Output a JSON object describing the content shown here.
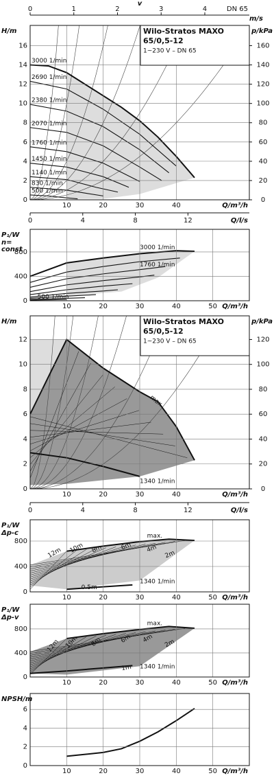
{
  "chart_data": [
    {
      "type": "line",
      "ylabel": "H/m",
      "y2label": "p/kPa",
      "xlabel": "Q/m³/h",
      "xlim": [
        0,
        60
      ],
      "xticks": [
        10,
        20,
        30,
        40
      ],
      "ylim": [
        0,
        18.1
      ],
      "yticks": [
        0,
        2,
        4,
        6,
        8,
        10,
        12,
        14,
        16
      ],
      "y2lim": [
        0,
        181
      ],
      "y2ticks": [
        0,
        20,
        40,
        60,
        80,
        100,
        120,
        140,
        160
      ],
      "top_axis": {
        "label": "v",
        "unit": "m/s",
        "note": "DN 65",
        "lim": [
          0,
          5.02
        ],
        "ticks": [
          0,
          1,
          2,
          3,
          4
        ]
      },
      "x2label": "Q/l/s",
      "x2lim": [
        0,
        16.67
      ],
      "x2ticks": [
        0,
        4,
        8,
        12
      ],
      "box": [
        "Wilo-Stratos MAXO",
        "65/0,5-12",
        "1~230 V – DN 65"
      ],
      "color": "#111",
      "series": [
        {
          "name": "3000 1/min",
          "x": [
            0,
            5,
            10,
            15,
            20,
            25,
            30,
            35,
            40,
            45
          ],
          "values": [
            14,
            13.9,
            13.2,
            12,
            10.8,
            9.6,
            8.2,
            6.5,
            4.5,
            2.3
          ]
        },
        {
          "name": "2690 1/min",
          "x": [
            0,
            10,
            20,
            30,
            40
          ],
          "values": [
            12.3,
            11.5,
            9.4,
            6.8,
            3.5
          ]
        },
        {
          "name": "2380 1/min",
          "x": [
            0,
            10,
            20,
            30,
            38
          ],
          "values": [
            9.9,
            9.2,
            7.6,
            5.2,
            2.8
          ]
        },
        {
          "name": "2070 1/min",
          "x": [
            0,
            10,
            20,
            30,
            36
          ],
          "values": [
            7.5,
            7,
            5.6,
            3.4,
            2
          ]
        },
        {
          "name": "1760 1/min",
          "x": [
            0,
            10,
            20,
            30
          ],
          "values": [
            5.5,
            5,
            3.8,
            1.9
          ]
        },
        {
          "name": "1450 1/min",
          "x": [
            0,
            10,
            20,
            27
          ],
          "values": [
            3.8,
            3.4,
            2.4,
            1.3
          ]
        },
        {
          "name": "1140 1/min",
          "x": [
            0,
            10,
            18,
            24
          ],
          "values": [
            2.4,
            2.1,
            1.3,
            0.8
          ]
        },
        {
          "name": "830 1/min",
          "x": [
            0,
            10,
            15,
            20
          ],
          "values": [
            1.3,
            1,
            0.7,
            0.4
          ]
        },
        {
          "name": "500 1/min",
          "x": [
            0,
            5,
            10,
            13
          ],
          "values": [
            0.5,
            0.4,
            0.2,
            0.1
          ]
        }
      ]
    },
    {
      "type": "line",
      "ylabel": "P₁/W",
      "ylabel_sub": [
        "n=",
        "const"
      ],
      "xlabel": "Q/m³/h",
      "xlim": [
        0,
        60
      ],
      "xticks": [
        10,
        20,
        30,
        40,
        50
      ],
      "ylim": [
        0,
        1170
      ],
      "yticks": [
        0,
        400,
        800
      ],
      "color": "#111",
      "series": [
        {
          "name": "3000 1/min",
          "x": [
            0,
            10,
            20,
            30,
            40,
            45
          ],
          "values": [
            400,
            620,
            700,
            770,
            820,
            810
          ]
        },
        {
          "x": [
            0,
            10,
            20,
            30,
            41
          ],
          "values": [
            300,
            470,
            560,
            640,
            700
          ]
        },
        {
          "x": [
            0,
            10,
            20,
            30,
            37
          ],
          "values": [
            220,
            360,
            440,
            510,
            560
          ]
        },
        {
          "x": [
            0,
            10,
            20,
            30,
            34
          ],
          "values": [
            150,
            260,
            330,
            390,
            420
          ]
        },
        {
          "name": "1760 1/min",
          "x": [
            0,
            10,
            20,
            28
          ],
          "values": [
            100,
            180,
            240,
            280
          ]
        },
        {
          "x": [
            0,
            10,
            20,
            24
          ],
          "values": [
            60,
            120,
            160,
            180
          ]
        },
        {
          "x": [
            0,
            10,
            18
          ],
          "values": [
            40,
            75,
            100
          ]
        },
        {
          "x": [
            0,
            10,
            15
          ],
          "values": [
            20,
            40,
            50
          ]
        },
        {
          "name": "500 1/min",
          "x": [
            0,
            5,
            10
          ],
          "values": [
            10,
            15,
            20
          ]
        }
      ]
    },
    {
      "type": "line",
      "ylabel": "H/m",
      "y2label": "p/kPa",
      "xlabel": "Q/m³/h",
      "xlim": [
        0,
        60
      ],
      "xticks": [
        10,
        20,
        30,
        40
      ],
      "ylim": [
        0,
        13.9
      ],
      "yticks": [
        0,
        2,
        4,
        6,
        8,
        10,
        12
      ],
      "y2lim": [
        0,
        139
      ],
      "y2ticks": [
        0,
        20,
        40,
        60,
        80,
        100,
        120
      ],
      "x2label": "Q/l/s",
      "x2lim": [
        0,
        16.67
      ],
      "x2ticks": [
        0,
        4,
        8,
        12
      ],
      "box": [
        "Wilo-Stratos MAXO",
        "65/0,5-12",
        "1~230 V – DN 65"
      ],
      "color": "#111",
      "series": [
        {
          "name": "max.",
          "x": [
            0,
            10,
            20,
            30,
            35,
            40,
            45
          ],
          "values": [
            6,
            12,
            9.7,
            7.8,
            7,
            5,
            2.3
          ]
        },
        {
          "name": "1340 1/min",
          "x": [
            0,
            10,
            20,
            25,
            30
          ],
          "values": [
            2.9,
            2.5,
            1.8,
            1.4,
            1
          ]
        }
      ]
    },
    {
      "type": "line",
      "ylabel": "P₁/W",
      "ylabel_sub": [
        "Δp-c"
      ],
      "xlabel": "Q/m³/h",
      "xlim": [
        0,
        60
      ],
      "xticks": [
        10,
        20,
        30,
        40,
        50
      ],
      "ylim": [
        0,
        1135
      ],
      "yticks": [
        0,
        400,
        800
      ],
      "color": "#111",
      "annotations": [
        "12m",
        "10m",
        "8m",
        "6m",
        "4m",
        "2m",
        "0.5m"
      ],
      "series": [
        {
          "name": "max.",
          "x": [
            10,
            20,
            30,
            38,
            45
          ],
          "values": [
            640,
            720,
            790,
            830,
            810
          ]
        },
        {
          "name": "1340 1/min",
          "x": [
            10,
            20,
            28
          ],
          "values": [
            40,
            80,
            110
          ]
        }
      ]
    },
    {
      "type": "line",
      "ylabel": "P₁/W",
      "ylabel_sub": [
        "Δp-v"
      ],
      "xlabel": "Q/m³/h",
      "xlim": [
        0,
        60
      ],
      "xticks": [
        10,
        20,
        30,
        40,
        50
      ],
      "ylim": [
        0,
        1210
      ],
      "yticks": [
        0,
        400,
        800
      ],
      "color": "#111",
      "annotations": [
        "12m",
        "10m",
        "8m",
        "6m",
        "4m",
        "2m",
        "1m"
      ],
      "series": [
        {
          "name": "max.",
          "x": [
            10,
            20,
            30,
            38,
            45
          ],
          "values": [
            640,
            720,
            790,
            840,
            810
          ]
        },
        {
          "name": "1340 1/min",
          "x": [
            0,
            10,
            20,
            28
          ],
          "values": [
            60,
            100,
            150,
            190
          ]
        }
      ]
    },
    {
      "type": "line",
      "ylabel": "NPSH/m",
      "xlabel": "Q/m³/h",
      "xlim": [
        0,
        60
      ],
      "xticks": [
        10,
        20,
        30,
        40,
        50
      ],
      "ylim": [
        0,
        7.7
      ],
      "yticks": [
        0,
        2,
        4,
        6
      ],
      "color": "#111",
      "series": [
        {
          "x": [
            10,
            20,
            25,
            30,
            35,
            40,
            45
          ],
          "values": [
            1,
            1.4,
            1.8,
            2.6,
            3.6,
            4.8,
            6.1
          ]
        }
      ]
    }
  ]
}
